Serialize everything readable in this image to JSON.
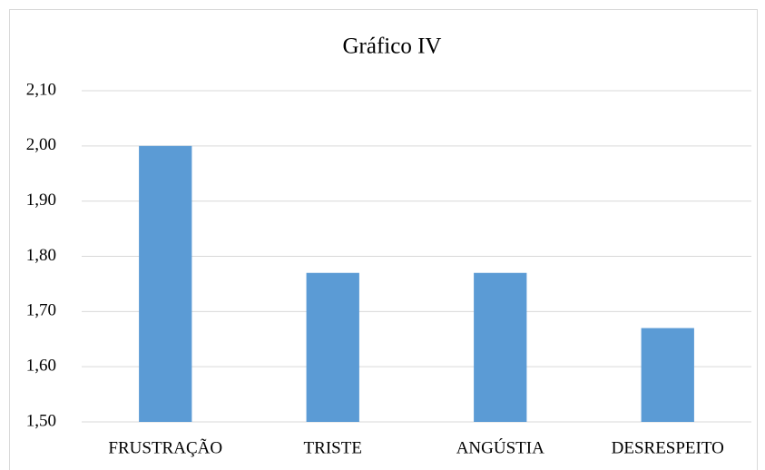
{
  "chart_data": {
    "type": "bar",
    "title": "Gráfico IV",
    "categories": [
      "FRUSTRAÇÃO",
      "TRISTE",
      "ANGÚSTIA",
      "DESRESPEITO"
    ],
    "values": [
      2.0,
      1.77,
      1.77,
      1.67
    ],
    "color": "#5b9bd5",
    "ylim": [
      1.5,
      2.1
    ],
    "yticks": [
      {
        "value": 1.5,
        "label": "1,50"
      },
      {
        "value": 1.6,
        "label": "1,60"
      },
      {
        "value": 1.7,
        "label": "1,70"
      },
      {
        "value": 1.8,
        "label": "1,80"
      },
      {
        "value": 1.9,
        "label": "1,90"
      },
      {
        "value": 2.0,
        "label": "2,00"
      },
      {
        "value": 2.1,
        "label": "2,10"
      }
    ],
    "grid": true
  }
}
